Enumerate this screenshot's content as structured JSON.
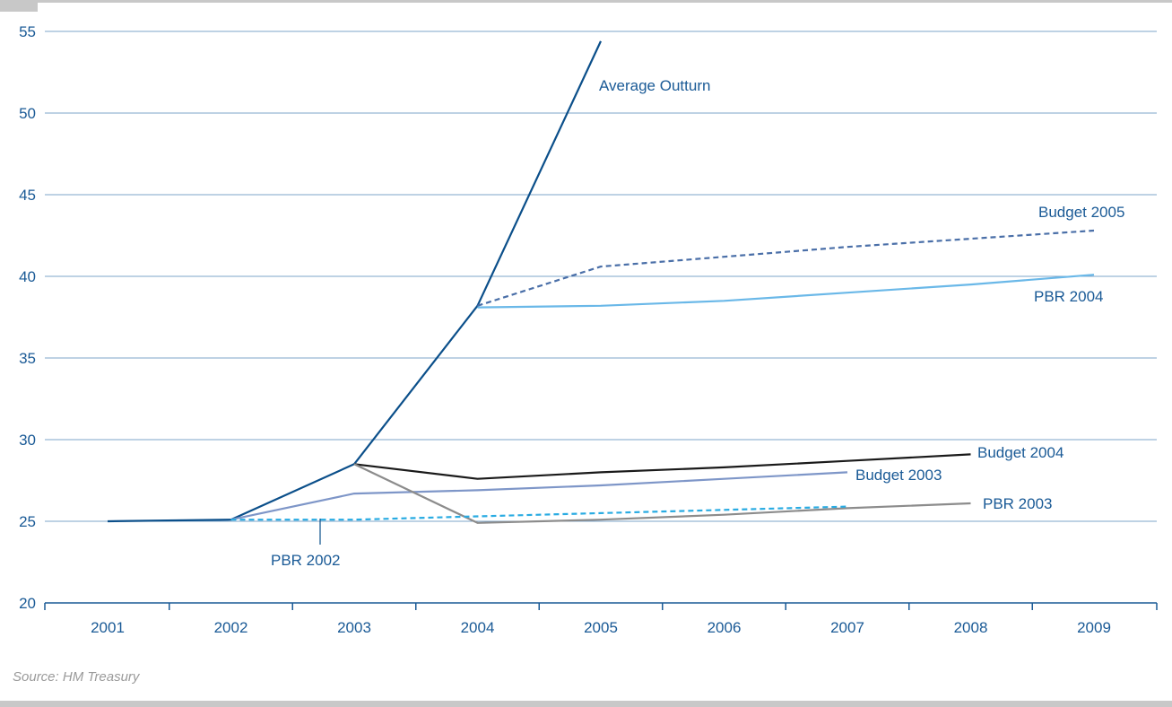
{
  "source_note": "Source: HM Treasury",
  "colors": {
    "axis_text": "#1a5a96",
    "grid": "#7ea4c8",
    "average_outturn": "#0b4f8a",
    "budget_2005": "#4a6fa8",
    "pbr_2004": "#6ab8e8",
    "budget_2004": "#1a1a1a",
    "budget_2003": "#7e96c8",
    "pbr_2003": "#8c8c8c",
    "pbr_2002": "#29abe2",
    "frame": "#c8c8c8"
  },
  "chart_data": {
    "type": "line",
    "title": "",
    "xlabel": "",
    "ylabel": "",
    "x": [
      "2001",
      "2002",
      "2003",
      "2004",
      "2005",
      "2006",
      "2007",
      "2008",
      "2009"
    ],
    "ylim": [
      20,
      55
    ],
    "yticks": [
      "20",
      "25",
      "30",
      "35",
      "40",
      "45",
      "50",
      "55"
    ],
    "grid": true,
    "series": [
      {
        "name": "Average Outturn",
        "style": "solid",
        "color_key": "average_outturn",
        "points": [
          [
            "2001",
            25.0
          ],
          [
            "2002",
            25.1
          ],
          [
            "2003",
            28.5
          ],
          [
            "2004",
            38.2
          ],
          [
            "2005",
            54.4
          ]
        ]
      },
      {
        "name": "Budget 2005",
        "style": "dashed",
        "color_key": "budget_2005",
        "points": [
          [
            "2004",
            38.2
          ],
          [
            "2005",
            40.6
          ],
          [
            "2006",
            41.2
          ],
          [
            "2007",
            41.8
          ],
          [
            "2008",
            42.3
          ],
          [
            "2009",
            42.8
          ]
        ]
      },
      {
        "name": "PBR 2004",
        "style": "solid",
        "color_key": "pbr_2004",
        "points": [
          [
            "2004",
            38.1
          ],
          [
            "2005",
            38.2
          ],
          [
            "2006",
            38.5
          ],
          [
            "2007",
            39.0
          ],
          [
            "2008",
            39.5
          ],
          [
            "2009",
            40.1
          ]
        ]
      },
      {
        "name": "Budget 2004",
        "style": "solid",
        "color_key": "budget_2004",
        "points": [
          [
            "2003",
            28.5
          ],
          [
            "2004",
            27.6
          ],
          [
            "2005",
            28.0
          ],
          [
            "2006",
            28.3
          ],
          [
            "2007",
            28.7
          ],
          [
            "2008",
            29.1
          ]
        ]
      },
      {
        "name": "Budget 2003",
        "style": "solid",
        "color_key": "budget_2003",
        "points": [
          [
            "2002",
            25.1
          ],
          [
            "2003",
            26.7
          ],
          [
            "2004",
            26.9
          ],
          [
            "2005",
            27.2
          ],
          [
            "2006",
            27.6
          ],
          [
            "2007",
            28.0
          ]
        ]
      },
      {
        "name": "PBR 2003",
        "style": "solid",
        "color_key": "pbr_2003",
        "points": [
          [
            "2003",
            28.5
          ],
          [
            "2004",
            24.9
          ],
          [
            "2005",
            25.1
          ],
          [
            "2006",
            25.4
          ],
          [
            "2007",
            25.8
          ],
          [
            "2008",
            26.1
          ]
        ]
      },
      {
        "name": "PBR 2002",
        "style": "dashed",
        "color_key": "pbr_2002",
        "points": [
          [
            "2002",
            25.1
          ],
          [
            "2003",
            25.1
          ],
          [
            "2004",
            25.3
          ],
          [
            "2005",
            25.5
          ],
          [
            "2006",
            25.7
          ],
          [
            "2007",
            25.9
          ]
        ]
      }
    ]
  }
}
